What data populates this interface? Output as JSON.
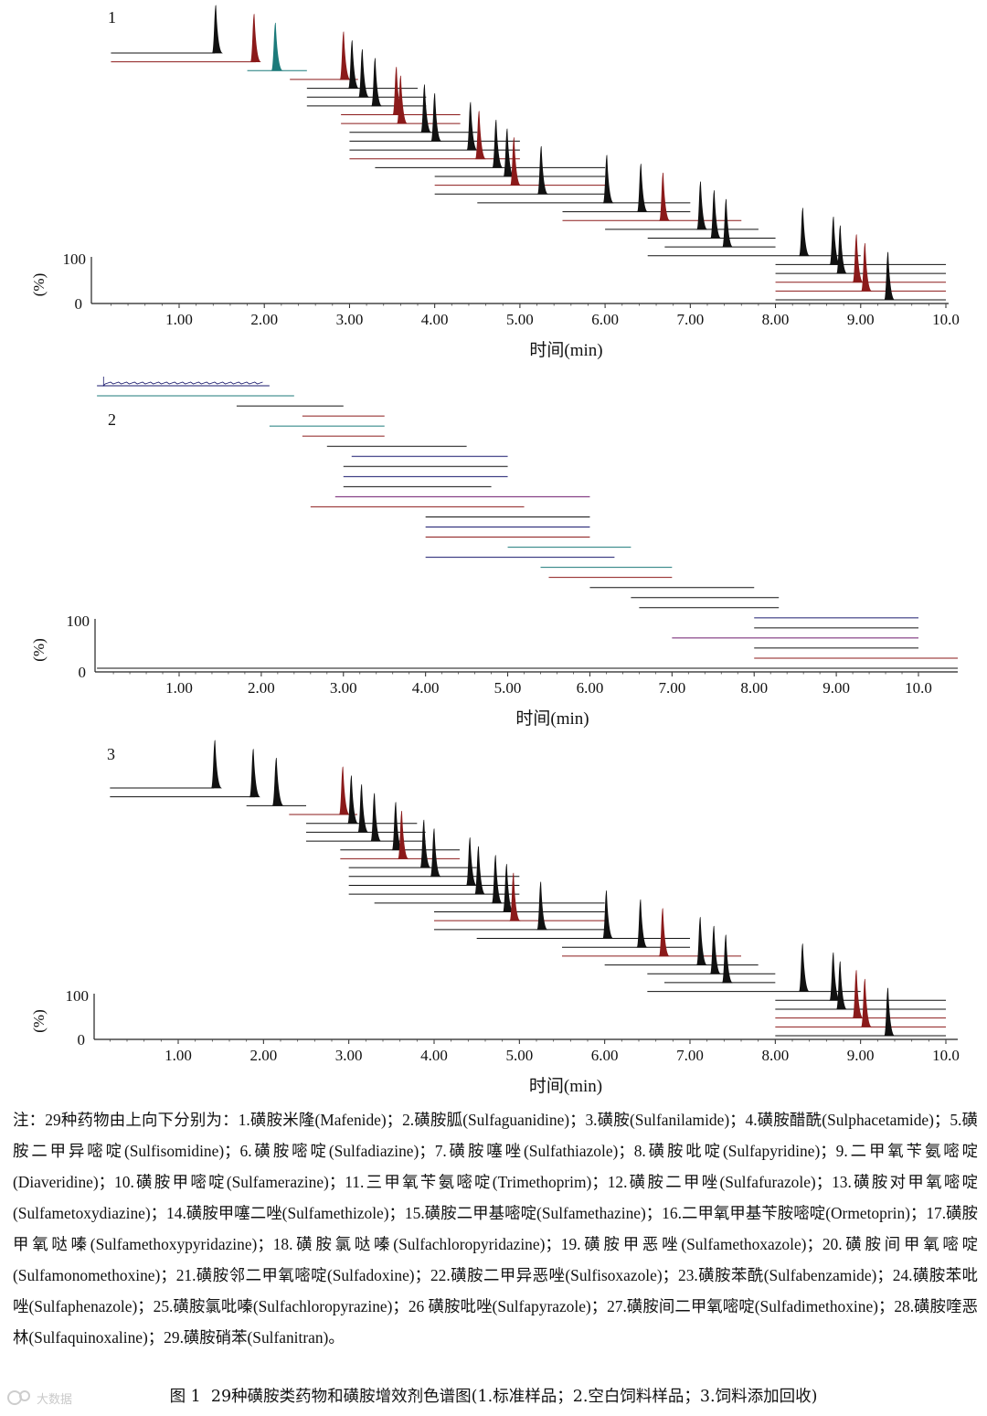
{
  "chart_data": [
    {
      "type": "line",
      "panel_label": "1",
      "title": "标准样品",
      "xlabel": "时间(min)",
      "ylabel": "(%)",
      "xlim": [
        0.2,
        10.0
      ],
      "ylim": [
        0,
        100
      ],
      "xticks": [
        "1.00",
        "2.00",
        "3.00",
        "4.00",
        "5.00",
        "6.00",
        "7.00",
        "8.00",
        "9.00",
        "10.0"
      ],
      "yticks": [
        "0",
        "100"
      ],
      "series": [
        {
          "name": "Mafenide",
          "peak_rt": 1.43,
          "tick_start": 0.2,
          "tick_end": 1.42,
          "color": "#111111",
          "width": 0.03
        },
        {
          "name": "Sulfaguanidine",
          "peak_rt": 1.88,
          "tick_start": 0.2,
          "tick_end": 1.9,
          "color": "#8b1a1a",
          "width": 0.03
        },
        {
          "name": "Sulfanilamide",
          "peak_rt": 2.13,
          "tick_start": 1.8,
          "tick_end": 2.5,
          "color": "#1c7a7a",
          "width": 0.07
        },
        {
          "name": "Sulfacetamide",
          "peak_rt": 2.93,
          "tick_start": 2.3,
          "tick_end": 3.1,
          "color": "#8b1a1a",
          "width": 0.04
        },
        {
          "name": "Sulfisomidine",
          "peak_rt": 3.03,
          "tick_start": 2.5,
          "tick_end": 3.8,
          "color": "#111111",
          "width": 0.035
        },
        {
          "name": "Sulfadiazine",
          "peak_rt": 3.15,
          "tick_start": 2.5,
          "tick_end": 3.9,
          "color": "#111111",
          "width": 0.035
        },
        {
          "name": "Sulfathiazole",
          "peak_rt": 3.3,
          "tick_start": 2.5,
          "tick_end": 3.9,
          "color": "#111111",
          "width": 0.035
        },
        {
          "name": "Sulfapyridine",
          "peak_rt": 3.55,
          "tick_start": 2.9,
          "tick_end": 4.3,
          "color": "#8b1a1a",
          "width": 0.04
        },
        {
          "name": "Diaveridine",
          "peak_rt": 3.6,
          "tick_start": 2.9,
          "tick_end": 4.3,
          "color": "#8b1a1a",
          "width": 0.04
        },
        {
          "name": "Sulfamerazine",
          "peak_rt": 3.88,
          "tick_start": 3.0,
          "tick_end": 4.5,
          "color": "#111111",
          "width": 0.035
        },
        {
          "name": "Trimethoprim",
          "peak_rt": 4.0,
          "tick_start": 3.0,
          "tick_end": 5.0,
          "color": "#111111",
          "width": 0.035
        },
        {
          "name": "Sulfafurazole",
          "peak_rt": 4.42,
          "tick_start": 3.0,
          "tick_end": 5.0,
          "color": "#111111",
          "width": 0.035
        },
        {
          "name": "Sulfametoxydiazine",
          "peak_rt": 4.52,
          "tick_start": 3.0,
          "tick_end": 5.0,
          "color": "#8b1a1a",
          "width": 0.035
        },
        {
          "name": "Sulfamethizole",
          "peak_rt": 4.72,
          "tick_start": 3.3,
          "tick_end": 6.0,
          "color": "#111111",
          "width": 0.035
        },
        {
          "name": "Sulfamethazine",
          "peak_rt": 4.85,
          "tick_start": 4.0,
          "tick_end": 6.0,
          "color": "#111111",
          "width": 0.035
        },
        {
          "name": "Ormetoprin",
          "peak_rt": 4.93,
          "tick_start": 4.0,
          "tick_end": 6.0,
          "color": "#8b1a1a",
          "width": 0.05
        },
        {
          "name": "Sulfamethoxypyridazine",
          "peak_rt": 5.25,
          "tick_start": 4.0,
          "tick_end": 6.0,
          "color": "#111111",
          "width": 0.04
        },
        {
          "name": "Sulfachloropyridazine",
          "peak_rt": 6.02,
          "tick_start": 4.5,
          "tick_end": 7.0,
          "color": "#111111",
          "width": 0.04
        },
        {
          "name": "Sulfamethoxazole",
          "peak_rt": 6.42,
          "tick_start": 5.5,
          "tick_end": 7.0,
          "color": "#111111",
          "width": 0.04
        },
        {
          "name": "Sulfamonomethoxine",
          "peak_rt": 6.68,
          "tick_start": 5.5,
          "tick_end": 7.6,
          "color": "#8b1a1a",
          "width": 0.05
        },
        {
          "name": "Sulfadoxine",
          "peak_rt": 7.12,
          "tick_start": 6.0,
          "tick_end": 7.8,
          "color": "#111111",
          "width": 0.04
        },
        {
          "name": "Sulfisoxazole",
          "peak_rt": 7.28,
          "tick_start": 6.5,
          "tick_end": 8.0,
          "color": "#111111",
          "width": 0.04
        },
        {
          "name": "Sulfabenzamide",
          "peak_rt": 7.42,
          "tick_start": 6.7,
          "tick_end": 8.0,
          "color": "#111111",
          "width": 0.04
        },
        {
          "name": "Sulfaphenazole",
          "peak_rt": 8.32,
          "tick_start": 6.5,
          "tick_end": 9.0,
          "color": "#111111",
          "width": 0.035
        },
        {
          "name": "Sulfachloropyrazine",
          "peak_rt": 8.68,
          "tick_start": 8.0,
          "tick_end": 10.0,
          "color": "#111111",
          "width": 0.03
        },
        {
          "name": "Sulfapyrazole",
          "peak_rt": 8.76,
          "tick_start": 8.0,
          "tick_end": 10.0,
          "color": "#111111",
          "width": 0.03
        },
        {
          "name": "Sulfadimethoxine",
          "peak_rt": 8.95,
          "tick_start": 8.0,
          "tick_end": 10.0,
          "color": "#8b1a1a",
          "width": 0.03
        },
        {
          "name": "Sulfaquinoxaline",
          "peak_rt": 9.05,
          "tick_start": 8.0,
          "tick_end": 10.0,
          "color": "#8b1a1a",
          "width": 0.03
        },
        {
          "name": "Sulfanitran",
          "peak_rt": 9.32,
          "tick_start": 8.0,
          "tick_end": 10.0,
          "color": "#111111",
          "width": 0.03
        }
      ]
    },
    {
      "type": "line",
      "panel_label": "2",
      "title": "空白饲料样品",
      "xlabel": "时间(min)",
      "ylabel": "(%)",
      "xlim": [
        0.0,
        10.5
      ],
      "ylim": [
        0,
        100
      ],
      "xticks": [
        "1.00",
        "2.00",
        "3.00",
        "4.00",
        "5.00",
        "6.00",
        "7.00",
        "8.00",
        "9.00",
        "10.0"
      ],
      "yticks": [
        "0",
        "100"
      ],
      "series": [
        {
          "name": "Mafenide",
          "tick_start": 0.0,
          "tick_end": 2.1,
          "color": "#1a1a6e"
        },
        {
          "name": "Sulfaguanidine",
          "tick_start": 0.0,
          "tick_end": 2.4,
          "color": "#1c7a7a"
        },
        {
          "name": "Sulfanilamide",
          "tick_start": 1.7,
          "tick_end": 3.0,
          "color": "#111111"
        },
        {
          "name": "Sulfacetamide",
          "tick_start": 2.5,
          "tick_end": 3.5,
          "color": "#8b1a1a"
        },
        {
          "name": "Sulfisomidine",
          "tick_start": 2.1,
          "tick_end": 3.5,
          "color": "#1c7a7a"
        },
        {
          "name": "Sulfadiazine",
          "tick_start": 2.5,
          "tick_end": 3.5,
          "color": "#8b1a1a"
        },
        {
          "name": "Sulfathiazole",
          "tick_start": 2.8,
          "tick_end": 4.5,
          "color": "#111111"
        },
        {
          "name": "Sulfapyridine",
          "tick_start": 3.1,
          "tick_end": 5.0,
          "color": "#1a1a6e"
        },
        {
          "name": "Diaveridine",
          "tick_start": 3.0,
          "tick_end": 5.0,
          "color": "#111111"
        },
        {
          "name": "Sulfamerazine",
          "tick_start": 3.0,
          "tick_end": 5.0,
          "color": "#1a1a6e"
        },
        {
          "name": "Trimethoprim",
          "tick_start": 3.0,
          "tick_end": 4.8,
          "color": "#111111"
        },
        {
          "name": "Sulfafurazole",
          "tick_start": 2.9,
          "tick_end": 6.0,
          "color": "#6e1a6e"
        },
        {
          "name": "Sulfametoxydiazine",
          "tick_start": 2.6,
          "tick_end": 5.2,
          "color": "#8b1a1a"
        },
        {
          "name": "Sulfamethizole",
          "tick_start": 4.0,
          "tick_end": 6.0,
          "color": "#111111"
        },
        {
          "name": "Sulfamethazine",
          "tick_start": 4.0,
          "tick_end": 6.0,
          "color": "#1a1a6e"
        },
        {
          "name": "Ormetoprin",
          "tick_start": 4.0,
          "tick_end": 6.0,
          "color": "#8b1a1a"
        },
        {
          "name": "Sulfamethoxypyridazine",
          "tick_start": 5.0,
          "tick_end": 6.5,
          "color": "#1c7a7a"
        },
        {
          "name": "Sulfachloropyridazine",
          "tick_start": 4.0,
          "tick_end": 6.3,
          "color": "#1a1a6e"
        },
        {
          "name": "Sulfamethoxazole",
          "tick_start": 5.4,
          "tick_end": 7.0,
          "color": "#1c7a7a"
        },
        {
          "name": "Sulfamonomethoxine",
          "tick_start": 5.5,
          "tick_end": 7.0,
          "color": "#8b1a1a"
        },
        {
          "name": "Sulfadoxine",
          "tick_start": 6.0,
          "tick_end": 8.0,
          "color": "#111111"
        },
        {
          "name": "Sulfisoxazole",
          "tick_start": 6.5,
          "tick_end": 8.3,
          "color": "#111111"
        },
        {
          "name": "Sulfabenzamide",
          "tick_start": 6.6,
          "tick_end": 8.3,
          "color": "#111111"
        },
        {
          "name": "Sulfaphenazole",
          "tick_start": 8.0,
          "tick_end": 10.0,
          "color": "#1a1a6e"
        },
        {
          "name": "Sulfachloropyrazine",
          "tick_start": 8.0,
          "tick_end": 10.0,
          "color": "#111111"
        },
        {
          "name": "Sulfapyrazole",
          "tick_start": 7.0,
          "tick_end": 10.0,
          "color": "#6e1a6e"
        },
        {
          "name": "Sulfadimethoxine",
          "tick_start": 8.0,
          "tick_end": 10.0,
          "color": "#111111"
        },
        {
          "name": "Sulfaquinoxaline",
          "tick_start": 8.0,
          "tick_end": 10.5,
          "color": "#8b1a1a"
        },
        {
          "name": "Sulfanitran",
          "tick_start": 0.0,
          "tick_end": 10.5,
          "color": "#111111"
        }
      ]
    },
    {
      "type": "line",
      "panel_label": "3",
      "title": "饲料添加回收",
      "xlabel": "时间(min)",
      "ylabel": "(%)",
      "xlim": [
        0.2,
        10.0
      ],
      "ylim": [
        0,
        100
      ],
      "xticks": [
        "1.00",
        "2.00",
        "3.00",
        "4.00",
        "5.00",
        "6.00",
        "7.00",
        "8.00",
        "9.00",
        "10.0"
      ],
      "yticks": [
        "0",
        "100"
      ],
      "series": [
        {
          "name": "Mafenide",
          "peak_rt": 1.43,
          "tick_start": 0.2,
          "tick_end": 1.42,
          "color": "#111111",
          "width": 0.03
        },
        {
          "name": "Sulfaguanidine",
          "peak_rt": 1.88,
          "tick_start": 0.2,
          "tick_end": 1.9,
          "color": "#111111",
          "width": 0.03
        },
        {
          "name": "Sulfanilamide",
          "peak_rt": 2.15,
          "tick_start": 1.8,
          "tick_end": 2.5,
          "color": "#111111",
          "width": 0.07
        },
        {
          "name": "Sulfacetamide",
          "peak_rt": 2.93,
          "tick_start": 2.3,
          "tick_end": 3.1,
          "color": "#8b1a1a",
          "width": 0.04
        },
        {
          "name": "Sulfisomidine",
          "peak_rt": 3.03,
          "tick_start": 2.5,
          "tick_end": 3.8,
          "color": "#111111",
          "width": 0.035
        },
        {
          "name": "Sulfadiazine",
          "peak_rt": 3.15,
          "tick_start": 2.5,
          "tick_end": 3.9,
          "color": "#111111",
          "width": 0.035
        },
        {
          "name": "Sulfathiazole",
          "peak_rt": 3.3,
          "tick_start": 2.5,
          "tick_end": 3.9,
          "color": "#111111",
          "width": 0.035
        },
        {
          "name": "Sulfapyridine",
          "peak_rt": 3.55,
          "tick_start": 2.9,
          "tick_end": 4.3,
          "color": "#111111",
          "width": 0.04
        },
        {
          "name": "Diaveridine",
          "peak_rt": 3.62,
          "tick_start": 2.9,
          "tick_end": 4.3,
          "color": "#8b1a1a",
          "width": 0.04
        },
        {
          "name": "Sulfamerazine",
          "peak_rt": 3.88,
          "tick_start": 3.0,
          "tick_end": 4.5,
          "color": "#111111",
          "width": 0.035
        },
        {
          "name": "Trimethoprim",
          "peak_rt": 4.0,
          "tick_start": 3.0,
          "tick_end": 5.0,
          "color": "#111111",
          "width": 0.035
        },
        {
          "name": "Sulfafurazole",
          "peak_rt": 4.42,
          "tick_start": 3.0,
          "tick_end": 5.0,
          "color": "#111111",
          "width": 0.035
        },
        {
          "name": "Sulfametoxydiazine",
          "peak_rt": 4.52,
          "tick_start": 3.0,
          "tick_end": 5.0,
          "color": "#111111",
          "width": 0.035
        },
        {
          "name": "Sulfamethizole",
          "peak_rt": 4.72,
          "tick_start": 3.3,
          "tick_end": 6.0,
          "color": "#111111",
          "width": 0.035
        },
        {
          "name": "Sulfamethazine",
          "peak_rt": 4.85,
          "tick_start": 4.0,
          "tick_end": 6.0,
          "color": "#111111",
          "width": 0.035
        },
        {
          "name": "Ormetoprin",
          "peak_rt": 4.93,
          "tick_start": 4.0,
          "tick_end": 6.0,
          "color": "#8b1a1a",
          "width": 0.05
        },
        {
          "name": "Sulfamethoxypyridazine",
          "peak_rt": 5.25,
          "tick_start": 4.0,
          "tick_end": 6.0,
          "color": "#111111",
          "width": 0.04
        },
        {
          "name": "Sulfachloropyridazine",
          "peak_rt": 6.02,
          "tick_start": 4.5,
          "tick_end": 7.0,
          "color": "#111111",
          "width": 0.04
        },
        {
          "name": "Sulfamethoxazole",
          "peak_rt": 6.42,
          "tick_start": 5.5,
          "tick_end": 7.0,
          "color": "#111111",
          "width": 0.04
        },
        {
          "name": "Sulfamonomethoxine",
          "peak_rt": 6.68,
          "tick_start": 5.5,
          "tick_end": 7.6,
          "color": "#8b1a1a",
          "width": 0.05
        },
        {
          "name": "Sulfadoxine",
          "peak_rt": 7.12,
          "tick_start": 6.0,
          "tick_end": 7.8,
          "color": "#111111",
          "width": 0.04
        },
        {
          "name": "Sulfisoxazole",
          "peak_rt": 7.28,
          "tick_start": 6.5,
          "tick_end": 8.0,
          "color": "#111111",
          "width": 0.04
        },
        {
          "name": "Sulfabenzamide",
          "peak_rt": 7.42,
          "tick_start": 6.7,
          "tick_end": 8.0,
          "color": "#111111",
          "width": 0.04
        },
        {
          "name": "Sulfaphenazole",
          "peak_rt": 8.32,
          "tick_start": 6.5,
          "tick_end": 9.0,
          "color": "#111111",
          "width": 0.035
        },
        {
          "name": "Sulfachloropyrazine",
          "peak_rt": 8.68,
          "tick_start": 8.0,
          "tick_end": 10.0,
          "color": "#111111",
          "width": 0.03
        },
        {
          "name": "Sulfapyrazole",
          "peak_rt": 8.76,
          "tick_start": 8.0,
          "tick_end": 10.0,
          "color": "#111111",
          "width": 0.03
        },
        {
          "name": "Sulfadimethoxine",
          "peak_rt": 8.95,
          "tick_start": 8.0,
          "tick_end": 10.0,
          "color": "#8b1a1a",
          "width": 0.03
        },
        {
          "name": "Sulfaquinoxaline",
          "peak_rt": 9.05,
          "tick_start": 8.0,
          "tick_end": 10.0,
          "color": "#8b1a1a",
          "width": 0.03
        },
        {
          "name": "Sulfanitran",
          "peak_rt": 9.32,
          "tick_start": 8.0,
          "tick_end": 10.0,
          "color": "#111111",
          "width": 0.03
        }
      ]
    }
  ],
  "note": {
    "label": "注：",
    "text": "29种药物由上向下分别为：1.磺胺米隆(Mafenide)；2.磺胺胍(Sulfaguanidine)；3.磺胺(Sulfanilamide)；4.磺胺醋酰(Sulphacetamide)；5.磺胺二甲异嘧啶(Sulfisomidine)；6.磺胺嘧啶(Sulfadiazine)；7.磺胺噻唑(Sulfathiazole)；8.磺胺吡啶(Sulfapyridine)；9.二甲氧苄氨嘧啶(Diaveridine)；10.磺胺甲嘧啶(Sulfamerazine)；11.三甲氧苄氨嘧啶(Trimethoprim)；12.磺胺二甲唑(Sulfafurazole)；13.磺胺对甲氧嘧啶(Sulfametoxydiazine)；14.磺胺甲噻二唑(Sulfamethizole)；15.磺胺二甲基嘧啶(Sulfamethazine)；16.二甲氧甲基苄胺嘧啶(Ormetoprin)；17.磺胺甲氧哒嗪(Sulfamethoxypyridazine)；18.磺胺氯哒嗪(Sulfachloropyridazine)；19.磺胺甲恶唑(Sulfamethoxazole)；20.磺胺间甲氧嘧啶(Sulfamonomethoxine)；21.磺胺邻二甲氧嘧啶(Sulfadoxine)；22.磺胺二甲异恶唑(Sulfisoxazole)；23.磺胺苯酰(Sulfabenzamide)；24.磺胺苯吡唑(Sulfaphenazole)；25.磺胺氯吡嗪(Sulfachloropyrazine)；26 磺胺吡唑(Sulfapyrazole)；27.磺胺间二甲氧嘧啶(Sulfadimethoxine)；28.磺胺喹恶林(Sulfaquinoxaline)；29.磺胺硝苯(Sulfanitran)。"
  },
  "caption": {
    "figure_label": "图 1",
    "text": "29种磺胺类药物和磺胺增效剂色谱图(1.标准样品；2.空白饲料样品；3.饲料添加回收)"
  },
  "watermark": {
    "text": "大数据"
  }
}
